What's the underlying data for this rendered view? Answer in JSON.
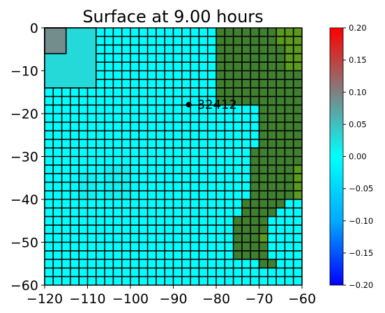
{
  "chart_data": {
    "type": "heatmap",
    "title": "Surface at 9.00 hours",
    "xlim": [
      -120,
      -60
    ],
    "ylim": [
      -60,
      0
    ],
    "xticks": [
      -120,
      -110,
      -100,
      -90,
      -80,
      -70,
      -60
    ],
    "yticks": [
      0,
      -10,
      -20,
      -30,
      -40,
      -50,
      -60
    ],
    "xtick_labels": [
      "−120",
      "−110",
      "−100",
      "−90",
      "−80",
      "−70",
      "−60"
    ],
    "ytick_labels": [
      "0",
      "−10",
      "−20",
      "−30",
      "−40",
      "−50",
      "−60"
    ],
    "colorbar": {
      "min": -0.2,
      "max": 0.2,
      "ticks": [
        0.2,
        0.15,
        0.1,
        0.05,
        0.0,
        -0.05,
        -0.1,
        -0.15,
        -0.2
      ],
      "tick_labels": [
        "0.20",
        "0.15",
        "0.10",
        "0.05",
        "0.00",
        "−0.05",
        "−0.10",
        "−0.15",
        "−0.20"
      ],
      "colors": [
        "#0000ff",
        "#00aaff",
        "#00ffff",
        "#808080",
        "#ff0000"
      ]
    },
    "gauge": {
      "label": "32412",
      "x": -86.4,
      "y": -17.9
    },
    "colors": {
      "water": "#00ffff",
      "land": "#3f7f2f",
      "land_light": "#5a9a1c",
      "grid": "#000000"
    },
    "coarse_grid_spacing": 12,
    "fine_grid_spacing": 2,
    "fine_grid_region": {
      "x": [
        -120,
        -60
      ],
      "y": [
        -60,
        0
      ]
    },
    "level2_patch": {
      "x": [
        -120,
        -108
      ],
      "y": [
        -14,
        0
      ]
    },
    "level3_patch": {
      "x": [
        -120,
        -115
      ],
      "y": [
        -6,
        0
      ]
    },
    "land_segments": [
      {
        "y": [
          -14,
          0
        ],
        "x": [
          -80,
          -60
        ]
      },
      {
        "y": [
          -18,
          -14
        ],
        "x": [
          -80,
          -60
        ]
      },
      {
        "y": [
          -28,
          -18
        ],
        "x": [
          -70,
          -60
        ]
      },
      {
        "y": [
          -38,
          -28
        ],
        "x": [
          -72,
          -60
        ]
      },
      {
        "y": [
          -40,
          -38
        ],
        "x": [
          -72,
          -60
        ]
      },
      {
        "y": [
          -42,
          -40
        ],
        "x": [
          -74,
          -64
        ]
      },
      {
        "y": [
          -44,
          -42
        ],
        "x": [
          -74,
          -66
        ]
      },
      {
        "y": [
          -54,
          -44
        ],
        "x": [
          -76,
          -68
        ]
      },
      {
        "y": [
          -56,
          -54
        ],
        "x": [
          -70,
          -66
        ]
      }
    ],
    "light_land_cells": [
      {
        "x": [
          -66,
          -60
        ],
        "y": [
          -4,
          0
        ]
      },
      {
        "x": [
          -64,
          -60
        ],
        "y": [
          -10,
          -4
        ]
      },
      {
        "x": [
          -62,
          -60
        ],
        "y": [
          -40,
          -32
        ]
      },
      {
        "x": [
          -70,
          -68
        ],
        "y": [
          -50,
          -48
        ]
      }
    ],
    "tint_regions": [
      {
        "x": [
          -120,
          -108
        ],
        "y": [
          -14,
          0
        ],
        "value": 0.03
      },
      {
        "x": [
          -120,
          -115
        ],
        "y": [
          -6,
          0
        ],
        "value": 0.09
      },
      {
        "x": [
          -112,
          -108
        ],
        "y": [
          -40,
          -34
        ],
        "value": 0.012
      },
      {
        "x": [
          -106,
          -100
        ],
        "y": [
          -40,
          -32
        ],
        "value": 0.012
      }
    ]
  }
}
